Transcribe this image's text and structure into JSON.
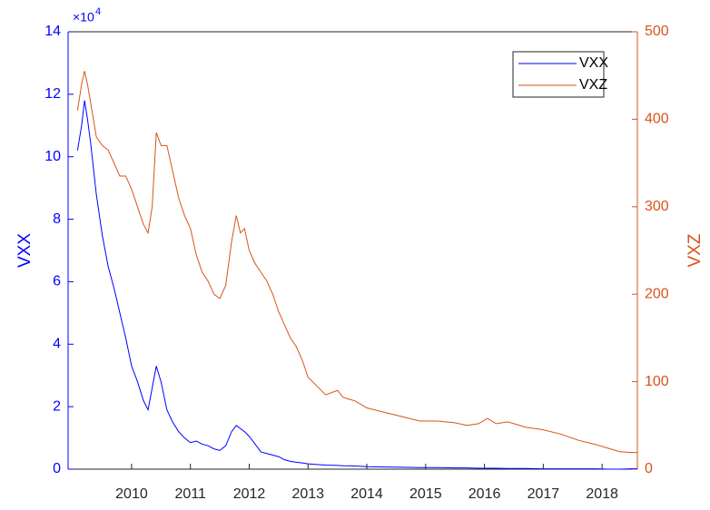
{
  "chart_data": {
    "type": "line",
    "ylabel": "VXX",
    "y2label": "VXZ",
    "y_exponent": {
      "base": "×10",
      "power": "4"
    },
    "x": [
      2009.08,
      2009.15,
      2009.2,
      2009.25,
      2009.3,
      2009.4,
      2009.5,
      2009.6,
      2009.7,
      2009.8,
      2009.9,
      2010.0,
      2010.1,
      2010.2,
      2010.28,
      2010.35,
      2010.42,
      2010.5,
      2010.6,
      2010.7,
      2010.8,
      2010.9,
      2011.0,
      2011.1,
      2011.2,
      2011.3,
      2011.4,
      2011.5,
      2011.6,
      2011.7,
      2011.78,
      2011.85,
      2011.92,
      2012.0,
      2012.1,
      2012.2,
      2012.3,
      2012.4,
      2012.5,
      2012.6,
      2012.7,
      2012.8,
      2012.9,
      2013.0,
      2013.15,
      2013.3,
      2013.5,
      2013.6,
      2013.8,
      2014.0,
      2014.3,
      2014.6,
      2014.9,
      2015.2,
      2015.5,
      2015.7,
      2015.9,
      2016.05,
      2016.2,
      2016.4,
      2016.7,
      2017.0,
      2017.3,
      2017.6,
      2017.9,
      2018.1,
      2018.3,
      2018.5,
      2018.6
    ],
    "series": [
      {
        "name": "VXX",
        "color": "#0000ff",
        "axis": "y",
        "values": [
          10.2,
          11.0,
          11.8,
          11.2,
          10.5,
          8.8,
          7.5,
          6.5,
          5.8,
          5.0,
          4.2,
          3.3,
          2.8,
          2.2,
          1.9,
          2.6,
          3.3,
          2.8,
          1.9,
          1.5,
          1.2,
          1.0,
          0.85,
          0.9,
          0.8,
          0.75,
          0.65,
          0.6,
          0.75,
          1.2,
          1.4,
          1.3,
          1.2,
          1.05,
          0.8,
          0.55,
          0.5,
          0.45,
          0.4,
          0.3,
          0.25,
          0.22,
          0.2,
          0.17,
          0.15,
          0.13,
          0.12,
          0.11,
          0.1,
          0.08,
          0.07,
          0.06,
          0.05,
          0.05,
          0.04,
          0.04,
          0.03,
          0.03,
          0.03,
          0.02,
          0.02,
          0.01,
          0.01,
          0.01,
          0.01,
          0.0,
          0.0,
          0.01,
          0.01
        ]
      },
      {
        "name": "VXZ",
        "color": "#d95319",
        "axis": "y2",
        "values": [
          410,
          440,
          455,
          440,
          420,
          380,
          370,
          365,
          350,
          335,
          335,
          320,
          300,
          280,
          270,
          300,
          385,
          370,
          370,
          340,
          310,
          290,
          275,
          245,
          225,
          215,
          200,
          195,
          210,
          260,
          290,
          270,
          275,
          250,
          235,
          225,
          215,
          200,
          180,
          165,
          150,
          140,
          125,
          105,
          95,
          85,
          90,
          82,
          78,
          70,
          65,
          60,
          55,
          55,
          53,
          50,
          52,
          58,
          52,
          54,
          48,
          45,
          40,
          33,
          28,
          24,
          20,
          19,
          19
        ]
      }
    ],
    "xlim": [
      2008.92,
      2018.6
    ],
    "xticks": [
      2010,
      2011,
      2012,
      2013,
      2014,
      2015,
      2016,
      2017,
      2018
    ],
    "ylim": [
      0,
      14
    ],
    "yticks": [
      0,
      2,
      4,
      6,
      8,
      10,
      12,
      14
    ],
    "y2lim": [
      0,
      500
    ],
    "y2ticks": [
      0,
      100,
      200,
      300,
      400,
      500
    ],
    "legend": "top-right"
  }
}
